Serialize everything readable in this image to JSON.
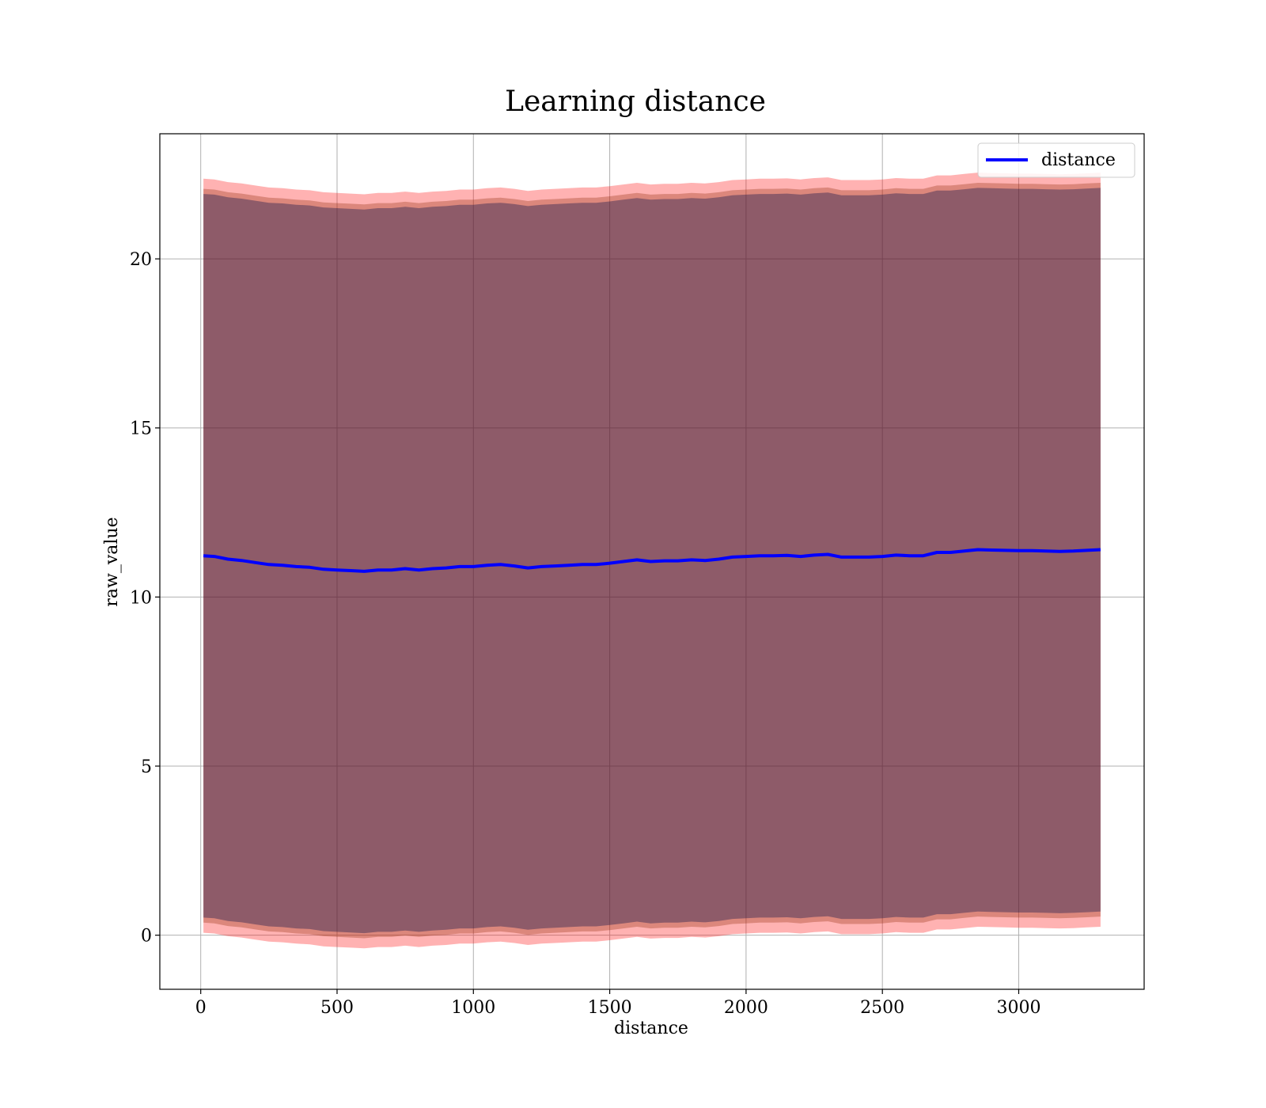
{
  "chart_data": {
    "type": "line",
    "title": "Learning distance",
    "xlabel": "distance",
    "ylabel": "raw_value",
    "xlim": [
      -150,
      3460
    ],
    "ylim": [
      -1.6,
      23.7
    ],
    "xticks": [
      0,
      500,
      1000,
      1500,
      2000,
      2500,
      3000
    ],
    "yticks": [
      0,
      5,
      10,
      15,
      20
    ],
    "grid": true,
    "legend": {
      "position": "top-right",
      "entries": [
        "distance"
      ]
    },
    "series": [
      {
        "name": "distance",
        "color": "#0000ff",
        "x": [
          10,
          50,
          100,
          150,
          200,
          250,
          300,
          350,
          400,
          450,
          500,
          550,
          600,
          650,
          700,
          750,
          800,
          850,
          900,
          950,
          1000,
          1050,
          1100,
          1150,
          1200,
          1250,
          1300,
          1350,
          1400,
          1450,
          1500,
          1550,
          1600,
          1650,
          1700,
          1750,
          1800,
          1850,
          1900,
          1950,
          2000,
          2050,
          2100,
          2150,
          2200,
          2250,
          2300,
          2350,
          2400,
          2450,
          2500,
          2550,
          2600,
          2650,
          2700,
          2750,
          2800,
          2850,
          2900,
          2950,
          3000,
          3050,
          3100,
          3150,
          3200,
          3250,
          3300
        ],
        "y": [
          11.22,
          11.2,
          11.12,
          11.08,
          11.02,
          10.96,
          10.94,
          10.9,
          10.88,
          10.82,
          10.8,
          10.78,
          10.76,
          10.8,
          10.8,
          10.84,
          10.8,
          10.84,
          10.86,
          10.9,
          10.9,
          10.94,
          10.96,
          10.92,
          10.86,
          10.9,
          10.92,
          10.94,
          10.96,
          10.96,
          11.0,
          11.05,
          11.1,
          11.05,
          11.07,
          11.07,
          11.1,
          11.08,
          11.12,
          11.18,
          11.2,
          11.22,
          11.22,
          11.23,
          11.2,
          11.24,
          11.26,
          11.18,
          11.18,
          11.18,
          11.2,
          11.24,
          11.22,
          11.22,
          11.32,
          11.32,
          11.36,
          11.4,
          11.39,
          11.38,
          11.37,
          11.37,
          11.36,
          11.35,
          11.36,
          11.38,
          11.4
        ]
      }
    ],
    "bands": [
      {
        "color": "#ff0000",
        "opacity": 0.3,
        "lower_offset": 11.15,
        "upper_offset": 11.15
      },
      {
        "color": "#8b2500",
        "opacity": 0.3,
        "lower_offset": 10.85,
        "upper_offset": 10.85
      },
      {
        "color": "#1a1a4d",
        "opacity": 0.4,
        "lower_offset": 10.7,
        "upper_offset": 10.7
      }
    ]
  }
}
